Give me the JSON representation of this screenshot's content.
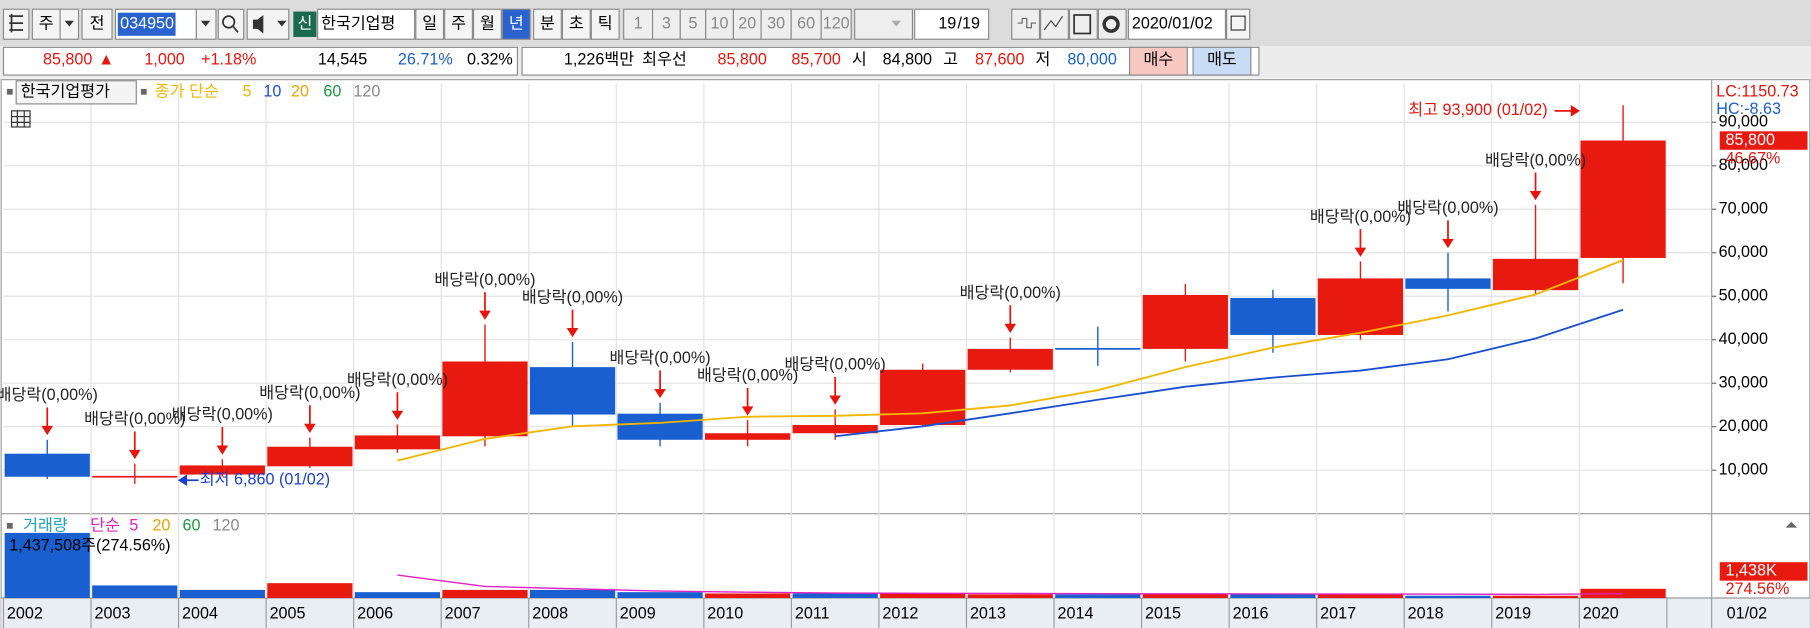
{
  "toolbar": {
    "period": "주",
    "prev": "전",
    "code": "034950",
    "new_badge": "신",
    "name": "한국기업평",
    "intervals": [
      "일",
      "주",
      "월",
      "년",
      "분",
      "초",
      "틱"
    ],
    "selected_interval": 3,
    "minutes": [
      1,
      3,
      5,
      10,
      20,
      30,
      60,
      120
    ],
    "page": "19",
    "page_total": "/19",
    "date": "2020/01/02"
  },
  "quote_bar": {
    "items": [
      {
        "text": "85,800",
        "color": "#e8140c"
      },
      {
        "text": "▲",
        "color": "#e8140c"
      },
      {
        "text": "1,000",
        "color": "#e8140c"
      },
      {
        "text": "+1.18%",
        "color": "#e8140c"
      },
      {
        "text": "14,545",
        "color": "#000000"
      },
      {
        "text": "26.71%",
        "color": "#1a5fcf"
      },
      {
        "text": "0.32%",
        "color": "#000000"
      },
      {
        "text": "1,226백만",
        "color": "#000000"
      },
      {
        "text": "최우선",
        "color": "#000000"
      },
      {
        "text": "85,800",
        "color": "#e8140c"
      },
      {
        "text": "85,700",
        "color": "#e8140c"
      },
      {
        "text": "시",
        "color": "#000000"
      },
      {
        "text": "84,800",
        "color": "#000000"
      },
      {
        "text": "고",
        "color": "#000000"
      },
      {
        "text": "87,600",
        "color": "#e8140c"
      },
      {
        "text": "저",
        "color": "#000000"
      },
      {
        "text": "80,000",
        "color": "#1a5fcf"
      }
    ],
    "buy": "매수",
    "sell": "매도"
  },
  "chart_data": {
    "type": "candlestick",
    "legend_name": "한국기업평가",
    "ma_label": {
      "text": "종가 단순",
      "color": "#f2b600"
    },
    "ma_periods": [
      {
        "label": 5,
        "color": "#f2b600"
      },
      {
        "label": 10,
        "color": "#1a4fcf"
      },
      {
        "label": 20,
        "color": "#f0a000"
      },
      {
        "label": 60,
        "color": "#1a9a3a"
      },
      {
        "label": 120,
        "color": "#888888"
      }
    ],
    "categories": [
      "2002",
      "2003",
      "2004",
      "2005",
      "2006",
      "2007",
      "2008",
      "2009",
      "2010",
      "2011",
      "2012",
      "2013",
      "2014",
      "2015",
      "2016",
      "2017",
      "2018",
      "2019",
      "2020"
    ],
    "end_label": "01/02",
    "up_color": "#e8190f",
    "down_color": "#1a5fcf",
    "open": [
      13800,
      8500,
      9000,
      10900,
      14800,
      17800,
      33700,
      23000,
      17000,
      18500,
      20400,
      33100,
      38100,
      37900,
      49600,
      41100,
      54100,
      51400,
      58800
    ],
    "high": [
      17000,
      11500,
      12500,
      17500,
      20500,
      43500,
      39500,
      25500,
      21500,
      24000,
      34500,
      40500,
      43000,
      52800,
      51500,
      58000,
      60000,
      71000,
      93900
    ],
    "low": [
      8000,
      6860,
      8500,
      10500,
      14000,
      15500,
      20000,
      15500,
      15500,
      17000,
      20000,
      32500,
      34000,
      35000,
      37000,
      40000,
      46500,
      50500,
      53000
    ],
    "close": [
      8500,
      8700,
      11100,
      15400,
      18000,
      35000,
      22800,
      17000,
      18500,
      20400,
      33100,
      37900,
      37900,
      50300,
      41100,
      54100,
      51700,
      58600,
      85800
    ],
    "moving_averages": [
      {
        "name": "5",
        "color": "#f2b600",
        "values": [
          null,
          null,
          null,
          null,
          12200,
          17200,
          20100,
          20900,
          22300,
          22500,
          23100,
          24900,
          28400,
          33700,
          38200,
          41600,
          45600,
          50400,
          58300
        ]
      },
      {
        "name": "10",
        "color": "#1a4fcf",
        "values": [
          null,
          null,
          null,
          null,
          null,
          null,
          null,
          null,
          null,
          17800,
          20100,
          23100,
          26200,
          29200,
          31300,
          32900,
          35500,
          40300,
          46900
        ]
      }
    ],
    "event_labels": [
      "배당락(0,00%)",
      "배당락(0,00%)",
      "배당락(0,00%)",
      "배당락(0,00%)",
      "배당락(0,00%)",
      "배당락(0,00%)",
      "배당락(0,00%)",
      "배당락(0,00%)",
      "배당락(0,00%)",
      "배당락(0,00%)",
      null,
      "배당락(0,00%)",
      null,
      null,
      null,
      "배당락(0,00%)",
      "배당락(0,00%)",
      "배당락(0,00%)",
      null
    ],
    "high_marker": "최고 93,900 (01/02)",
    "low_marker": "최저 6,860 (01/02)",
    "ylim": [
      0,
      99000
    ],
    "yticks": [
      {
        "value": 10000,
        "label": "10,000"
      },
      {
        "value": 20000,
        "label": "20,000"
      },
      {
        "value": 30000,
        "label": "30,000"
      },
      {
        "value": 40000,
        "label": "40,000"
      },
      {
        "value": 50000,
        "label": "50,000"
      },
      {
        "value": 60000,
        "label": "60,000"
      },
      {
        "value": 70000,
        "label": "70,000"
      },
      {
        "value": 80000,
        "label": "80,000"
      },
      {
        "value": 90000,
        "label": "90,000"
      }
    ],
    "grid": true,
    "axis_notes": [
      {
        "text": "LC:1150.73",
        "color": "#e8140c"
      },
      {
        "text": "HC:-8.63",
        "color": "#1a5fcf"
      }
    ],
    "current_price_label": "85,800",
    "change_label": "46.67%",
    "volume": {
      "label": {
        "text": "거래량",
        "color": "#1aa0c0"
      },
      "ma_label": {
        "text": "단순",
        "color": "#e020c0"
      },
      "ma_periods": [
        {
          "label": 5,
          "color": "#e020c0"
        },
        {
          "label": 20,
          "color": "#f0a000"
        },
        {
          "label": 60,
          "color": "#1a9a3a"
        },
        {
          "label": 120,
          "color": "#888888"
        }
      ],
      "values": [
        1450000,
        280000,
        180000,
        330000,
        130000,
        180000,
        180000,
        130000,
        100000,
        100000,
        100000,
        80000,
        80000,
        100000,
        80000,
        80000,
        50000,
        50000,
        205000
      ],
      "colors": [
        "#1a5fcf",
        "#1a5fcf",
        "#1a5fcf",
        "#e8190f",
        "#1a5fcf",
        "#e8190f",
        "#1a5fcf",
        "#1a5fcf",
        "#e8190f",
        "#1a5fcf",
        "#e8190f",
        "#e8190f",
        "#1a5fcf",
        "#e8190f",
        "#1a5fcf",
        "#e8190f",
        "#1a5fcf",
        "#e8190f",
        "#e8190f"
      ],
      "ma": {
        "name": "5",
        "color": "#e020c0",
        "values": [
          null,
          null,
          null,
          null,
          513000,
          257000,
          205000,
          154000,
          128000,
          110000,
          103000,
          100000,
          95000,
          92000,
          90000,
          88000,
          85000,
          80000,
          95000
        ]
      },
      "ylim": [
        0,
        1800000
      ],
      "current_label": "1,437,508주(274.56%)",
      "axis_label": "1,438K",
      "axis_pct": "274.56%"
    }
  }
}
